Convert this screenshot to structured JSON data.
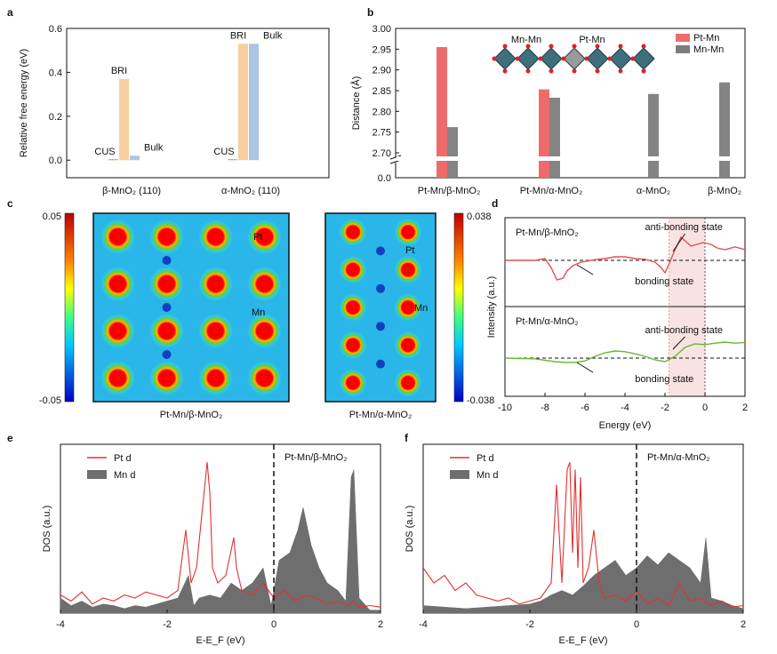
{
  "colors": {
    "cus": "#d9544a",
    "bri": "#f7cf9e",
    "bulk": "#a9c6e3",
    "pt_mn": "#ef6b6b",
    "mn_mn": "#7d7d7d",
    "dos_pt": "#e53030",
    "dos_mn": "#6e6e6e",
    "ir_top": "#e05050",
    "ir_bot": "#66b833",
    "shade": "#f6d6d6"
  },
  "panel_labels": [
    "a",
    "b",
    "c",
    "d",
    "e",
    "f"
  ],
  "chart_data": [
    {
      "panel": "a",
      "type": "bar",
      "ylabel": "Relative free energy (eV)",
      "ylim": [
        -0.08,
        0.6
      ],
      "yticks": [
        "0.0",
        "0.2",
        "0.4",
        "0.6"
      ],
      "categories": [
        "β-MnO₂ (110)",
        "α-MnO₂ (110)"
      ],
      "series": [
        {
          "name": "CUS",
          "values": [
            0.0,
            0.0
          ]
        },
        {
          "name": "BRI",
          "values": [
            0.37,
            0.53
          ]
        },
        {
          "name": "Bulk",
          "values": [
            0.02,
            0.53
          ]
        }
      ]
    },
    {
      "panel": "b",
      "type": "bar",
      "ylabel": "Distance (Å)",
      "yticks": [
        "0.0",
        "2.70",
        "2.75",
        "2.80",
        "2.85",
        "2.90",
        "2.95",
        "3.00"
      ],
      "ylim": [
        2.7,
        3.0
      ],
      "axis_break": true,
      "categories": [
        "Pt-Mn/β-MnO₂",
        "Pt-Mn/α-MnO₂",
        "α-MnO₂",
        "β-MnO₂"
      ],
      "series": [
        {
          "name": "Pt-Mn",
          "values": [
            2.955,
            2.853,
            null,
            null
          ]
        },
        {
          "name": "Mn-Mn",
          "values": [
            2.762,
            2.833,
            2.842,
            2.87
          ]
        }
      ],
      "inset_labels": [
        "Mn-Mn",
        "Pt-Mn"
      ]
    },
    {
      "panel": "c",
      "type": "heatmap",
      "maps": [
        {
          "caption": "Pt-Mn/β-MnO₂",
          "scale_max": "0.05",
          "scale_min": "-0.05",
          "atom_labels": [
            "Pt",
            "Mn"
          ]
        },
        {
          "caption": "Pt-Mn/α-MnO₂",
          "scale_max": "0.038",
          "scale_min": "-0.038",
          "atom_labels": [
            "Pt",
            "Mn"
          ]
        }
      ]
    },
    {
      "panel": "d",
      "type": "line",
      "xlabel": "Energy (eV)",
      "ylabel": "Intensity (a.u.)",
      "xlim": [
        -10,
        2
      ],
      "xticks": [
        "-10",
        "-8",
        "-6",
        "-4",
        "-2",
        "0",
        "2"
      ],
      "subpanels": [
        {
          "title": "Pt-Mn/β-MnO₂",
          "bonding": "bonding state",
          "antibonding": "anti-bonding state",
          "x": [
            -10,
            -8.5,
            -8,
            -7.7,
            -7.4,
            -7.1,
            -6.9,
            -6.6,
            -6.2,
            -5.5,
            -5,
            -4.5,
            -4,
            -3.5,
            -3,
            -2.5,
            -2.2,
            -2,
            -1.8,
            -1.5,
            -1.2,
            -1,
            -0.7,
            -0.4,
            -0.1,
            0.3,
            0.6,
            1,
            1.5,
            2
          ],
          "y": [
            0,
            0,
            0.05,
            -0.2,
            -0.55,
            -0.5,
            -0.3,
            -0.15,
            -0.05,
            0.02,
            0.05,
            0.1,
            0.1,
            0.05,
            0.03,
            -0.05,
            -0.2,
            -0.35,
            -0.1,
            0.3,
            0.65,
            0.55,
            0.4,
            0.45,
            0.5,
            0.45,
            0.35,
            0.3,
            0.38,
            0.3
          ]
        },
        {
          "title": "Pt-Mn/α-MnO₂",
          "bonding": "bonding state",
          "antibonding": "anti-bonding state",
          "x": [
            -10,
            -8.5,
            -8,
            -7.5,
            -7,
            -6.5,
            -6,
            -5.5,
            -5,
            -4.5,
            -4,
            -3.5,
            -3,
            -2.5,
            -2,
            -1.5,
            -1,
            -0.5,
            0,
            0.5,
            1,
            1.5,
            2
          ],
          "y": [
            0,
            -0.02,
            -0.06,
            -0.1,
            -0.12,
            -0.12,
            -0.08,
            0.05,
            0.15,
            0.2,
            0.18,
            0.12,
            0.05,
            -0.05,
            -0.1,
            0.05,
            0.3,
            0.4,
            0.38,
            0.42,
            0.45,
            0.42,
            0.44
          ]
        }
      ]
    },
    {
      "panel": "e",
      "type": "area",
      "xlabel": "E-E_F (eV)",
      "ylabel": "DOS (a.u.)",
      "xlim": [
        -4,
        2
      ],
      "xticks": [
        "-4",
        "-2",
        "0",
        "2"
      ],
      "title": "Pt-Mn/β-MnO₂",
      "series": [
        {
          "name": "Pt d",
          "x": [
            -4,
            -3.8,
            -3.6,
            -3.4,
            -3.2,
            -3.0,
            -2.8,
            -2.6,
            -2.4,
            -2.2,
            -2.0,
            -1.8,
            -1.65,
            -1.55,
            -1.45,
            -1.35,
            -1.25,
            -1.2,
            -1.15,
            -1.05,
            -0.9,
            -0.75,
            -0.7,
            -0.6,
            -0.4,
            -0.2,
            0,
            0.2,
            0.4,
            0.6,
            0.8,
            1.0,
            1.2,
            1.4,
            1.5,
            1.6,
            1.8,
            2.0
          ],
          "y": [
            0.12,
            0.08,
            0.14,
            0.06,
            0.1,
            0.08,
            0.12,
            0.1,
            0.14,
            0.12,
            0.1,
            0.15,
            0.55,
            0.2,
            0.3,
            0.65,
            1.0,
            0.8,
            0.3,
            0.2,
            0.25,
            0.5,
            0.3,
            0.15,
            0.12,
            0.2,
            0.1,
            0.15,
            0.08,
            0.12,
            0.1,
            0.06,
            0.08,
            0.05,
            0.08,
            0.04,
            0.05,
            0.04
          ]
        },
        {
          "name": "Mn d",
          "x": [
            -4,
            -3.8,
            -3.6,
            -3.4,
            -3.2,
            -3.0,
            -2.8,
            -2.6,
            -2.4,
            -2.2,
            -2.0,
            -1.8,
            -1.6,
            -1.5,
            -1.4,
            -1.2,
            -1.0,
            -0.8,
            -0.6,
            -0.4,
            -0.2,
            -0.05,
            0.1,
            0.3,
            0.45,
            0.55,
            0.7,
            0.85,
            1.0,
            1.2,
            1.35,
            1.45,
            1.5,
            1.6,
            1.8,
            2.0
          ],
          "y": [
            0.1,
            0.05,
            0.08,
            0.04,
            0.06,
            0.05,
            0.03,
            0.05,
            0.04,
            0.06,
            0.08,
            0.1,
            0.25,
            0.05,
            0.1,
            0.12,
            0.1,
            0.2,
            0.15,
            0.2,
            0.3,
            0.05,
            0.35,
            0.4,
            0.55,
            0.7,
            0.45,
            0.3,
            0.2,
            0.15,
            0.08,
            0.9,
            0.95,
            0.1,
            0.02,
            0.02
          ]
        }
      ]
    },
    {
      "panel": "f",
      "type": "area",
      "xlabel": "E-E_F (eV)",
      "ylabel": "DOS (a.u.)",
      "xlim": [
        -4,
        2
      ],
      "xticks": [
        "-4",
        "-2",
        "0",
        "2"
      ],
      "title": "Pt-Mn/α-MnO₂",
      "series": [
        {
          "name": "Pt d",
          "x": [
            -4,
            -3.8,
            -3.6,
            -3.4,
            -3.2,
            -3.0,
            -2.8,
            -2.6,
            -2.4,
            -2.2,
            -2.0,
            -1.8,
            -1.6,
            -1.5,
            -1.4,
            -1.3,
            -1.25,
            -1.2,
            -1.15,
            -1.1,
            -1.05,
            -1.0,
            -0.9,
            -0.8,
            -0.7,
            -0.6,
            -0.4,
            -0.2,
            0,
            0.2,
            0.4,
            0.6,
            0.8,
            1.0,
            1.2,
            1.4,
            1.6,
            1.8,
            2.0
          ],
          "y": [
            0.3,
            0.2,
            0.25,
            0.15,
            0.2,
            0.12,
            0.1,
            0.08,
            0.1,
            0.06,
            0.08,
            0.1,
            0.2,
            0.85,
            0.2,
            0.95,
            1.0,
            0.4,
            0.95,
            0.3,
            0.9,
            0.2,
            0.3,
            0.55,
            0.2,
            0.1,
            0.12,
            0.08,
            0.15,
            0.06,
            0.1,
            0.05,
            0.2,
            0.08,
            0.1,
            0.05,
            0.08,
            0.04,
            0.05
          ]
        },
        {
          "name": "Mn d",
          "x": [
            -4,
            -3.6,
            -3.2,
            -2.8,
            -2.4,
            -2.0,
            -1.8,
            -1.6,
            -1.4,
            -1.2,
            -1.0,
            -0.8,
            -0.6,
            -0.4,
            -0.2,
            0,
            0.2,
            0.4,
            0.6,
            0.8,
            1.0,
            1.2,
            1.3,
            1.4,
            1.6,
            1.8,
            2.0
          ],
          "y": [
            0.05,
            0.04,
            0.03,
            0.04,
            0.05,
            0.06,
            0.08,
            0.12,
            0.15,
            0.12,
            0.18,
            0.25,
            0.3,
            0.35,
            0.25,
            0.3,
            0.38,
            0.32,
            0.4,
            0.35,
            0.3,
            0.2,
            0.5,
            0.1,
            0.08,
            0.05,
            0.03
          ]
        }
      ]
    }
  ]
}
